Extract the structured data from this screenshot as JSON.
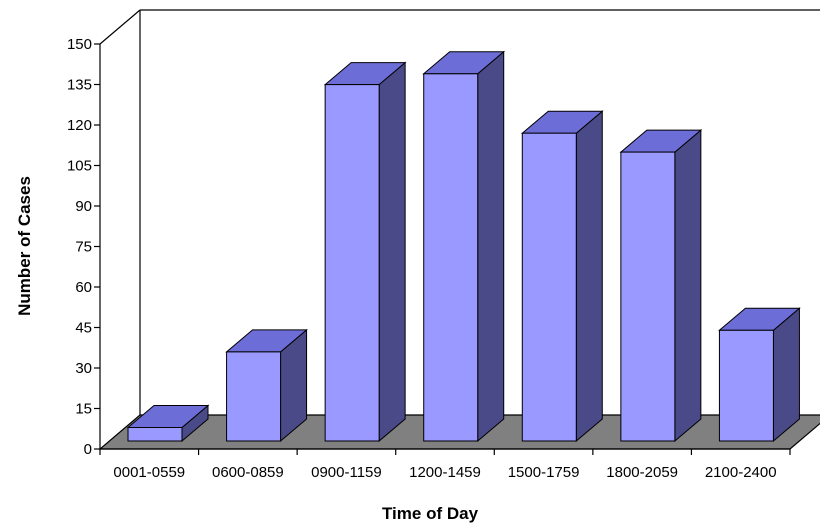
{
  "chart_data": {
    "type": "bar",
    "style": "3d-column",
    "title": "",
    "xlabel": "Time of Day",
    "ylabel": "Number of Cases",
    "categories": [
      "0001-0559",
      "0600-0859",
      "0900-1159",
      "1200-1459",
      "1500-1759",
      "1800-2059",
      "2100-2400"
    ],
    "values": [
      5,
      33,
      132,
      136,
      114,
      107,
      41
    ],
    "ylim": [
      0,
      150
    ],
    "yticks": [
      0,
      15,
      30,
      45,
      60,
      75,
      90,
      105,
      120,
      135,
      150
    ],
    "grid": false,
    "legend": "none",
    "colors": {
      "bar_front": "#9999ff",
      "bar_top": "#6d6dd8",
      "bar_side": "#4a4a88",
      "floor": "#808080",
      "wall": "#ffffff",
      "stroke": "#000000"
    }
  }
}
